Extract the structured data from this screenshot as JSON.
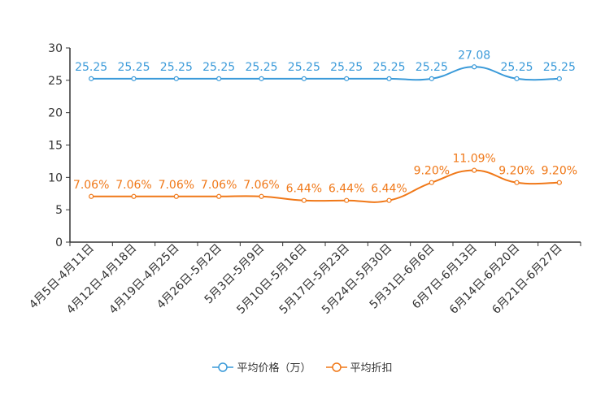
{
  "chart_data": {
    "type": "line",
    "title": "",
    "xlabel": "",
    "ylabel": "",
    "ylim": [
      0,
      30
    ],
    "yticks": [
      "0",
      "5",
      "10",
      "15",
      "20",
      "25",
      "30"
    ],
    "categories": [
      "4月5日-4月11日",
      "4月12日-4月18日",
      "4月19日-4月25日",
      "4月26日-5月2日",
      "5月3日-5月9日",
      "5月10日-5月16日",
      "5月17日-5月23日",
      "5月24日-5月30日",
      "5月31日-6月6日",
      "6月7日-6月13日",
      "6月14日-6月20日",
      "6月21日-6月27日"
    ],
    "series": [
      {
        "name": "平均价格（万）",
        "color": "#3a9ad9",
        "values": [
          25.25,
          25.25,
          25.25,
          25.25,
          25.25,
          25.25,
          25.25,
          25.25,
          25.25,
          27.08,
          25.25,
          25.25
        ],
        "labels": [
          "25.25",
          "25.25",
          "25.25",
          "25.25",
          "25.25",
          "25.25",
          "25.25",
          "25.25",
          "25.25",
          "27.08",
          "25.25",
          "25.25"
        ]
      },
      {
        "name": "平均折扣",
        "color": "#f07818",
        "values": [
          7.06,
          7.06,
          7.06,
          7.06,
          7.06,
          6.44,
          6.44,
          6.44,
          9.2,
          11.09,
          9.2,
          9.2
        ],
        "labels": [
          "7.06%",
          "7.06%",
          "7.06%",
          "7.06%",
          "7.06%",
          "6.44%",
          "6.44%",
          "6.44%",
          "9.20%",
          "11.09%",
          "9.20%",
          "9.20%"
        ]
      }
    ],
    "legend_position": "bottom"
  }
}
